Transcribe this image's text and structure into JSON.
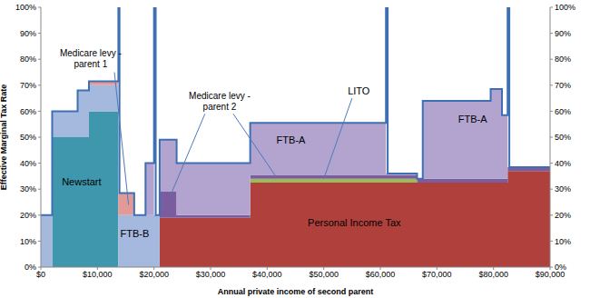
{
  "chart_data": {
    "type": "area",
    "stacked": true,
    "grid": false,
    "x_label": "Annual private income of second parent",
    "y_label": "Effective Marginal Tax Rate",
    "x": [
      0,
      2000,
      6500,
      8500,
      13700,
      13900,
      16500,
      18500,
      20000,
      20300,
      21000,
      24000,
      37000,
      61000,
      61300,
      66500,
      67500,
      79500,
      81500,
      82500,
      82800,
      90000
    ],
    "series": [
      {
        "name": "Personal Income Tax",
        "color": "#b0403c",
        "values": [
          0,
          0,
          0,
          0,
          0,
          0,
          0,
          0,
          0,
          0,
          19,
          19,
          32.5,
          32.5,
          32.5,
          32.5,
          32.5,
          32.5,
          32.5,
          37,
          37,
          37
        ]
      },
      {
        "name": "Newstart",
        "color": "#3f97ae",
        "values": [
          0,
          50,
          50,
          60,
          0,
          0,
          0,
          0,
          0,
          0,
          0,
          0,
          0,
          0,
          0,
          0,
          0,
          0,
          0,
          0,
          0,
          0
        ]
      },
      {
        "name": "FTB-B",
        "color": "#a5b8dd",
        "values": [
          20,
          10,
          18,
          10,
          20,
          20,
          20,
          20,
          20,
          20,
          0,
          0,
          0,
          0,
          0,
          0,
          0,
          0,
          0,
          0,
          0,
          0
        ]
      },
      {
        "name": "Medicare levy - parent 1",
        "color": "#e29a99",
        "values": [
          0,
          0,
          0,
          1.5,
          8.5,
          8.5,
          0,
          0,
          0,
          0,
          0,
          0,
          0,
          0,
          0,
          0,
          0,
          0,
          0,
          0,
          0,
          0
        ]
      },
      {
        "name": "LITO",
        "color": "#9bbb59",
        "values": [
          0,
          0,
          0,
          0,
          0,
          0,
          0,
          0,
          0,
          0,
          0,
          0,
          1.5,
          1.5,
          1.5,
          0,
          0,
          0,
          0,
          0,
          0,
          0
        ]
      },
      {
        "name": "Medicare levy - parent 2",
        "color": "#7b5c9f",
        "values": [
          0,
          0,
          0,
          0,
          0,
          0,
          0,
          0,
          0,
          0,
          10,
          1,
          1.5,
          1.5,
          1.5,
          1.5,
          1.5,
          1.5,
          1.5,
          1.5,
          1.5,
          1.5
        ]
      },
      {
        "name": "FTB-A",
        "color": "#b2a4cf",
        "values": [
          0,
          0,
          0,
          0,
          0,
          0,
          0,
          20,
          0,
          0,
          20,
          20,
          20,
          0.5,
          0.5,
          0,
          30,
          34.5,
          24.5,
          0,
          0,
          0
        ]
      },
      {
        "type": "line",
        "color": "#3e6fb3",
        "values": [
          20,
          60,
          68,
          71.5,
          100,
          28.5,
          20,
          40,
          100,
          20,
          49,
          40,
          55.5,
          100,
          36,
          34,
          64,
          68.5,
          58.5,
          100,
          38.5,
          38.5
        ]
      }
    ],
    "xlim": [
      0,
      90000
    ],
    "xticks": [
      {
        "value": 0,
        "label": "$0"
      },
      {
        "value": 10000,
        "label": "$10,000"
      },
      {
        "value": 20000,
        "label": "$20,000"
      },
      {
        "value": 30000,
        "label": "$30,000"
      },
      {
        "value": 40000,
        "label": "$40,000"
      },
      {
        "value": 50000,
        "label": "$50,000"
      },
      {
        "value": 60000,
        "label": "$60,000"
      },
      {
        "value": 70000,
        "label": "$70,000"
      },
      {
        "value": 80000,
        "label": "$80,000"
      },
      {
        "value": 90000,
        "label": "$90,000"
      }
    ],
    "ylim": [
      0,
      100
    ],
    "yticks": [
      {
        "value": 0,
        "label": "0%"
      },
      {
        "value": 10,
        "label": "10%"
      },
      {
        "value": 20,
        "label": "20%"
      },
      {
        "value": 30,
        "label": "30%"
      },
      {
        "value": 40,
        "label": "40%"
      },
      {
        "value": 50,
        "label": "50%"
      },
      {
        "value": 60,
        "label": "60%"
      },
      {
        "value": 70,
        "label": "70%"
      },
      {
        "value": 80,
        "label": "80%"
      },
      {
        "value": 90,
        "label": "90%"
      },
      {
        "value": 100,
        "label": "100%"
      }
    ],
    "y2lim": [
      0,
      100
    ],
    "y2ticks": [
      {
        "value": 0,
        "label": "0%"
      },
      {
        "value": 10,
        "label": "10%"
      },
      {
        "value": 20,
        "label": "20%"
      },
      {
        "value": 30,
        "label": "30%"
      },
      {
        "value": 40,
        "label": "40%"
      },
      {
        "value": 50,
        "label": "50%"
      },
      {
        "value": 60,
        "label": "60%"
      },
      {
        "value": 70,
        "label": "70%"
      },
      {
        "value": 80,
        "label": "80%"
      },
      {
        "value": 90,
        "label": "90%"
      },
      {
        "value": 100,
        "label": "100%"
      }
    ],
    "annotations": [
      {
        "text": "Newstart",
        "x": 7200,
        "y": 33
      },
      {
        "text": "FTB-B",
        "x": 16600,
        "y": 13
      },
      {
        "text": "Personal Income Tax",
        "x": 55400,
        "y": 17
      },
      {
        "text": "FTB-A",
        "x": 44200,
        "y": 49
      },
      {
        "text": "FTB-A",
        "x": 76300,
        "y": 57
      },
      {
        "text": "LITO",
        "x": 56200,
        "y": 68,
        "arrows": [
          {
            "from": [
              55000,
              65
            ],
            "to": [
              50000,
              34
            ]
          }
        ]
      },
      {
        "text": "Medicare levy - parent 1",
        "x": 8800,
        "y": 80.5,
        "arrows": [
          {
            "from": [
              13000,
              75
            ],
            "to": [
              15500,
              24
            ]
          }
        ]
      },
      {
        "text": "Medicare levy - parent 2",
        "x": 31600,
        "y": 64,
        "arrows": [
          {
            "from": [
              29000,
              59
            ],
            "to": [
              22800,
              27
            ]
          },
          {
            "from": [
              34000,
              59
            ],
            "to": [
              41500,
              35
            ]
          }
        ]
      }
    ]
  }
}
